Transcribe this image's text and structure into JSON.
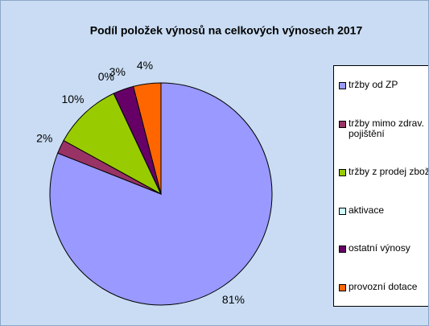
{
  "chart_data": {
    "type": "pie",
    "title": "Podíl položek výnosů na celkových výnosech 2017",
    "categories": [
      "tržby od ZP",
      "tržby mimo zdrav. pojištění",
      "tržby z prodej zboží",
      "aktivace",
      "ostatní výnosy",
      "provozní dotace"
    ],
    "values": [
      81,
      2,
      10,
      0,
      3,
      4
    ],
    "value_labels": [
      "81%",
      "2%",
      "10%",
      "0%",
      "3%",
      "4%"
    ],
    "colors": [
      "#9999ff",
      "#993366",
      "#99cc00",
      "#ccffff",
      "#660066",
      "#ff6600"
    ],
    "legend": "right"
  }
}
